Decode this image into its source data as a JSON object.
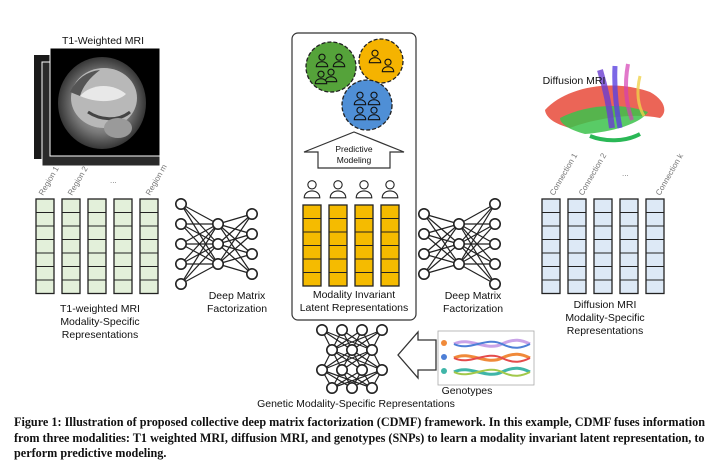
{
  "figure": {
    "t1": {
      "title": "T1-Weighted MRI",
      "regions": [
        "Region 1",
        "Region 2",
        "...",
        "Region m"
      ],
      "label": [
        "T1-weighted MRI",
        "Modality-Specific",
        "Representations"
      ]
    },
    "dti": {
      "title": "Diffusion MRI",
      "connections": [
        "Connection 1",
        "Connection 2",
        "...",
        "Connection k"
      ],
      "label": [
        "Diffusion MRI",
        "Modality-Specific",
        "Representations"
      ]
    },
    "dmf_left": [
      "Deep Matrix",
      "Factorization"
    ],
    "dmf_right": [
      "Deep Matrix",
      "Factorization"
    ],
    "predictive": [
      "Predictive",
      "Modeling"
    ],
    "latent": [
      "Modality Invariant",
      "Latent Representations"
    ],
    "genotypes": "Genotypes",
    "genetic": "Genetic Modality-Specific Representations",
    "colors": {
      "t1_cells": "#e3f0da",
      "dti_cells": "#dde9f6",
      "latent_cells": "#f5bb00",
      "cluster_green": "#55a33a",
      "cluster_orange": "#f5b300",
      "cluster_blue": "#4f8fd6"
    }
  },
  "caption": {
    "label": "Figure 1:",
    "text": "Illustration of proposed collective deep matrix factorization (CDMF) framework. In this example, CDMF fuses information from three modalities: T1 weighted MRI, diffusion MRI, and genotypes (SNPs) to learn a modality invariant latent representation, to perform predictive modeling."
  }
}
